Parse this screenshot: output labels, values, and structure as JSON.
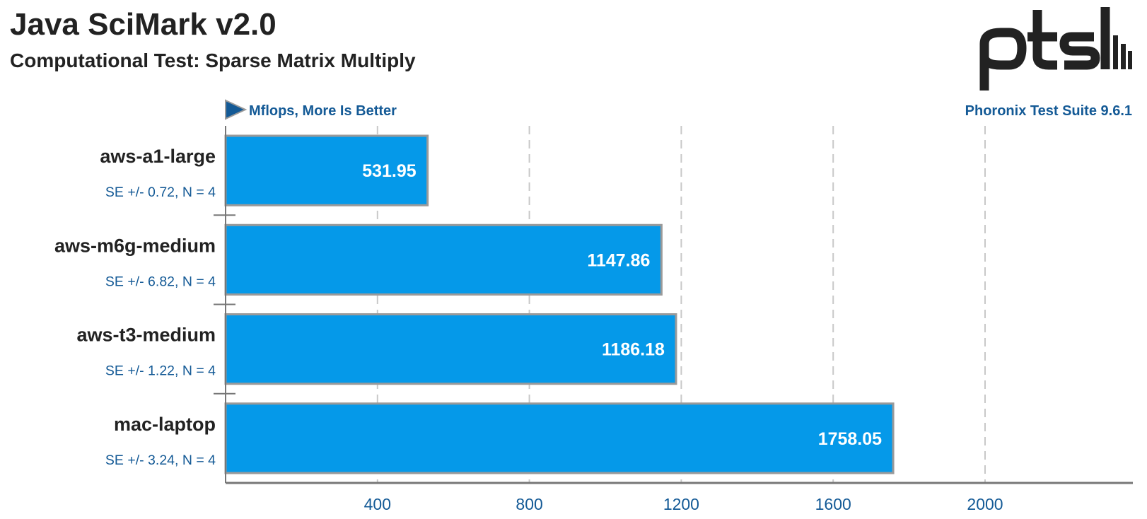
{
  "title": "Java SciMark v2.0",
  "subtitle": "Computational Test: Sparse Matrix Multiply",
  "units_label": "Mflops, More Is Better",
  "suite_label": "Phoronix Test Suite 9.6.1",
  "logo_text": "ptsh",
  "colors": {
    "bar": "#0599e9",
    "bar_border": "#9a9a9a",
    "title": "#222222",
    "accent": "#145a96",
    "grid": "#c8c8c8",
    "axis": "#777777"
  },
  "chart_data": {
    "type": "bar",
    "orientation": "horizontal",
    "categories": [
      "aws-a1-large",
      "aws-m6g-medium",
      "aws-t3-medium",
      "mac-laptop"
    ],
    "values": [
      531.95,
      1147.86,
      1186.18,
      1758.05
    ],
    "value_labels": [
      "531.95",
      "1147.86",
      "1186.18",
      "1758.05"
    ],
    "errors": [
      "SE +/- 0.72, N = 4",
      "SE +/- 6.82, N = 4",
      "SE +/- 1.22, N = 4",
      "SE +/- 3.24, N = 4"
    ],
    "x_ticks": [
      400,
      800,
      1200,
      1600,
      2000
    ],
    "xlim": [
      0,
      2400
    ],
    "grid": true
  }
}
